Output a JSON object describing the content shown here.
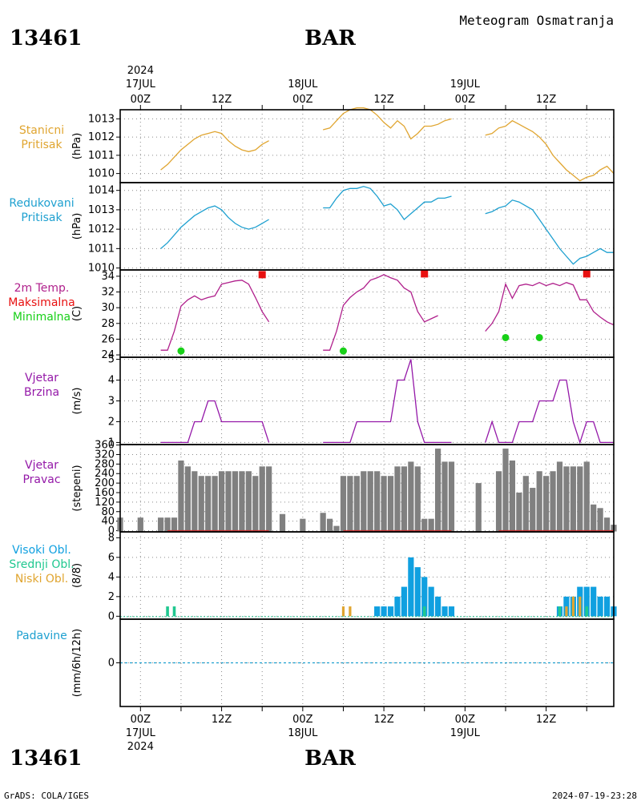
{
  "header": {
    "station_id": "13461",
    "station_name": "BAR",
    "product": "Meteogram Osmatranja"
  },
  "footer": {
    "credit": "GrADS: COLA/IGES",
    "timestamp": "2024-07-19-23:28"
  },
  "top_axis": {
    "year": "2024",
    "days": [
      {
        "label": "17JUL",
        "hour": 0
      },
      {
        "label": "18JUL",
        "hour": 24
      },
      {
        "label": "19JUL",
        "hour": 48
      }
    ],
    "hours": [
      {
        "label": "00Z",
        "hour": 0
      },
      {
        "label": "12Z",
        "hour": 12
      },
      {
        "label": "00Z",
        "hour": 24
      },
      {
        "label": "12Z",
        "hour": 36
      },
      {
        "label": "00Z",
        "hour": 48
      },
      {
        "label": "12Z",
        "hour": 60
      }
    ]
  },
  "bottom_axis": {
    "year": "2024",
    "days": [
      {
        "label": "17JUL",
        "hour": 0
      },
      {
        "label": "18JUL",
        "hour": 24
      },
      {
        "label": "19JUL",
        "hour": 48
      }
    ],
    "hours": [
      {
        "label": "00Z",
        "hour": 0
      },
      {
        "label": "12Z",
        "hour": 12
      },
      {
        "label": "00Z",
        "hour": 24
      },
      {
        "label": "12Z",
        "hour": 36
      },
      {
        "label": "00Z",
        "hour": 48
      },
      {
        "label": "12Z",
        "hour": 60
      }
    ]
  },
  "colors": {
    "station_pressure": "#e0a530",
    "reduced_pressure": "#1ea0d0",
    "temperature": "#b0208c",
    "tmax": "#e81010",
    "tmin": "#18d018",
    "wind": "#9418a8",
    "direction_bar": "#808080",
    "direction_base": "#c83030",
    "cloud_high": "#10a0e0",
    "cloud_mid": "#20c890",
    "cloud_low": "#e0a530",
    "precip": "#1ea0d0"
  },
  "chart_data": [
    {
      "type": "line",
      "id": "station_pressure",
      "labels": [
        "Stanicni",
        "Pritisak"
      ],
      "ylabel": "(hPa)",
      "xlim": [
        -3,
        70
      ],
      "ylim": [
        1009.5,
        1013.5
      ],
      "yticks": [
        1010,
        1011,
        1012,
        1013
      ],
      "series": [
        {
          "x": [
            3,
            4,
            5,
            6,
            7,
            8,
            9,
            10,
            11,
            12,
            13,
            14,
            15,
            16,
            17,
            18,
            19,
            null,
            27,
            28,
            29,
            30,
            31,
            32,
            33,
            34,
            35,
            36,
            37,
            38,
            39,
            40,
            41,
            42,
            43,
            44,
            45,
            46,
            null,
            51,
            52,
            53,
            54,
            55,
            56,
            57,
            58,
            59,
            60,
            61,
            62,
            63,
            64,
            65,
            66,
            67,
            68,
            69,
            70
          ],
          "y": [
            1010.2,
            1010.5,
            1010.9,
            1011.3,
            1011.6,
            1011.9,
            1012.1,
            1012.2,
            1012.3,
            1012.2,
            1011.8,
            1011.5,
            1011.3,
            1011.2,
            1011.3,
            1011.6,
            1011.8,
            null,
            1012.4,
            1012.5,
            1012.9,
            1013.3,
            1013.5,
            1013.6,
            1013.6,
            1013.5,
            1013.2,
            1012.8,
            1012.5,
            1012.9,
            1012.6,
            1011.9,
            1012.2,
            1012.6,
            1012.6,
            1012.7,
            1012.9,
            1013.0,
            null,
            1012.1,
            1012.2,
            1012.5,
            1012.6,
            1012.9,
            1012.7,
            1012.5,
            1012.3,
            1012.0,
            1011.6,
            1011.0,
            1010.6,
            1010.2,
            1009.9,
            1009.6,
            1009.8,
            1009.9,
            1010.2,
            1010.4,
            1010.0
          ]
        }
      ]
    },
    {
      "type": "line",
      "id": "reduced_pressure",
      "labels": [
        "Redukovani",
        "Pritisak"
      ],
      "ylabel": "(hPa)",
      "xlim": [
        -3,
        70
      ],
      "ylim": [
        1009.9,
        1014.4
      ],
      "yticks": [
        1010,
        1011,
        1012,
        1013,
        1014
      ],
      "series": [
        {
          "x": [
            3,
            4,
            5,
            6,
            7,
            8,
            9,
            10,
            11,
            12,
            13,
            14,
            15,
            16,
            17,
            18,
            19,
            null,
            27,
            28,
            29,
            30,
            31,
            32,
            33,
            34,
            35,
            36,
            37,
            38,
            39,
            40,
            41,
            42,
            43,
            44,
            45,
            46,
            null,
            51,
            52,
            53,
            54,
            55,
            56,
            57,
            58,
            59,
            60,
            61,
            62,
            63,
            64,
            65,
            66,
            67,
            68,
            69,
            70
          ],
          "y": [
            1011.0,
            1011.3,
            1011.7,
            1012.1,
            1012.4,
            1012.7,
            1012.9,
            1013.1,
            1013.2,
            1013.0,
            1012.6,
            1012.3,
            1012.1,
            1012.0,
            1012.1,
            1012.3,
            1012.5,
            null,
            1013.1,
            1013.1,
            1013.6,
            1014.0,
            1014.1,
            1014.1,
            1014.2,
            1014.1,
            1013.7,
            1013.2,
            1013.3,
            1013.0,
            1012.5,
            1012.8,
            1013.1,
            1013.4,
            1013.4,
            1013.6,
            1013.6,
            1013.7,
            null,
            1012.8,
            1012.9,
            1013.1,
            1013.2,
            1013.5,
            1013.4,
            1013.2,
            1013.0,
            1012.5,
            1012.0,
            1011.5,
            1011.0,
            1010.6,
            1010.2,
            1010.5,
            1010.6,
            1010.8,
            1011.0,
            1010.8,
            1010.8
          ]
        }
      ]
    },
    {
      "type": "line",
      "id": "temperature",
      "labels": [
        "2m Temp.",
        "Maksimalna",
        "Minimalna"
      ],
      "ylabel": "(C)",
      "xlim": [
        -3,
        70
      ],
      "ylim": [
        23.7,
        34.8
      ],
      "yticks": [
        24,
        26,
        28,
        30,
        32,
        34
      ],
      "series": [
        {
          "name": "2m Temp.",
          "x": [
            3,
            4,
            5,
            6,
            7,
            8,
            9,
            10,
            11,
            12,
            13,
            14,
            15,
            16,
            17,
            18,
            19,
            null,
            27,
            28,
            29,
            30,
            31,
            32,
            33,
            34,
            35,
            36,
            37,
            38,
            39,
            40,
            41,
            42,
            43,
            44,
            null,
            51,
            52,
            53,
            54,
            55,
            56,
            57,
            58,
            59,
            60,
            61,
            62,
            63,
            64,
            65,
            66,
            67,
            68,
            69,
            70
          ],
          "y": [
            24.6,
            24.6,
            27.0,
            30.2,
            31.0,
            31.5,
            31.0,
            31.3,
            31.5,
            33.0,
            33.2,
            33.4,
            33.5,
            33.0,
            31.3,
            29.5,
            28.2,
            null,
            24.6,
            24.6,
            27.0,
            30.3,
            31.3,
            32.0,
            32.5,
            33.5,
            33.8,
            34.2,
            33.8,
            33.5,
            32.5,
            32.0,
            29.5,
            28.2,
            28.6,
            29.0,
            null,
            27.0,
            28.0,
            29.5,
            33.0,
            31.2,
            32.8,
            33.0,
            32.8,
            33.2,
            32.8,
            33.1,
            32.8,
            33.2,
            32.9,
            31.0,
            31.0,
            29.5,
            28.8,
            28.2,
            27.8
          ]
        },
        {
          "name": "Maksimalna",
          "marker": "square",
          "x": [
            18,
            42,
            66
          ],
          "y": [
            34.2,
            34.3,
            34.3
          ]
        },
        {
          "name": "Minimalna",
          "marker": "circle",
          "x": [
            6,
            30,
            54,
            59
          ],
          "y": [
            24.5,
            24.5,
            26.2,
            26.2
          ]
        }
      ]
    },
    {
      "type": "line",
      "id": "wind_speed",
      "labels": [
        "Vjetar",
        "Brzina"
      ],
      "ylabel": "(m/s)",
      "xlim": [
        -3,
        70
      ],
      "ylim": [
        0.9,
        5.1
      ],
      "yticks": [
        1,
        2,
        3,
        4,
        5
      ],
      "series": [
        {
          "x": [
            3,
            4,
            5,
            6,
            7,
            8,
            9,
            10,
            11,
            12,
            13,
            14,
            15,
            16,
            17,
            18,
            19,
            null,
            27,
            28,
            29,
            30,
            31,
            32,
            33,
            34,
            35,
            36,
            37,
            38,
            39,
            40,
            41,
            42,
            43,
            44,
            45,
            46,
            null,
            51,
            52,
            53,
            54,
            55,
            56,
            57,
            58,
            59,
            60,
            61,
            62,
            63,
            64,
            65,
            66,
            67,
            68,
            69,
            70
          ],
          "y": [
            1,
            1,
            1,
            1,
            1,
            2,
            2,
            3,
            3,
            2,
            2,
            2,
            2,
            2,
            2,
            2,
            1,
            null,
            1,
            1,
            1,
            1,
            1,
            2,
            2,
            2,
            2,
            2,
            2,
            4,
            4,
            5,
            2,
            1,
            1,
            1,
            1,
            1,
            null,
            1,
            2,
            1,
            1,
            1,
            2,
            2,
            2,
            3,
            3,
            3,
            4,
            4,
            2,
            1,
            2,
            2,
            1,
            1,
            1
          ]
        }
      ]
    },
    {
      "type": "bar",
      "id": "wind_direction",
      "labels": [
        "Vjetar",
        "Pravac"
      ],
      "ylabel": "(stepeni)",
      "xlim": [
        -3,
        70
      ],
      "ylim": [
        -5,
        362
      ],
      "yticks": [
        0,
        40,
        80,
        120,
        160,
        200,
        240,
        280,
        320,
        360
      ],
      "x": [
        -3,
        0,
        3,
        4,
        5,
        6,
        7,
        8,
        9,
        10,
        11,
        12,
        13,
        14,
        15,
        16,
        17,
        18,
        19,
        21,
        24,
        27,
        28,
        29,
        30,
        31,
        32,
        33,
        34,
        35,
        36,
        37,
        38,
        39,
        40,
        41,
        42,
        43,
        44,
        45,
        46,
        50,
        53,
        54,
        55,
        56,
        57,
        58,
        59,
        60,
        61,
        62,
        63,
        64,
        65,
        66,
        67,
        68,
        69,
        70
      ],
      "values": [
        55,
        55,
        55,
        55,
        55,
        295,
        270,
        250,
        230,
        230,
        230,
        250,
        250,
        250,
        250,
        250,
        230,
        270,
        270,
        70,
        50,
        75,
        50,
        20,
        230,
        230,
        230,
        250,
        250,
        250,
        230,
        230,
        270,
        270,
        290,
        270,
        50,
        50,
        345,
        290,
        290,
        200,
        250,
        345,
        295,
        160,
        230,
        180,
        250,
        230,
        250,
        290,
        270,
        270,
        270,
        290,
        110,
        95,
        55,
        25
      ]
    },
    {
      "type": "bar",
      "id": "cloud_cover",
      "labels": [
        "Visoki Obl.",
        "Srednji Obl.",
        "Niski Obl."
      ],
      "ylabel": "(8/8)",
      "xlim": [
        -3,
        70
      ],
      "ylim": [
        -0.3,
        8.6
      ],
      "yticks": [
        0,
        2,
        4,
        6,
        8
      ],
      "series": [
        {
          "name": "Visoki Obl.",
          "x": [
            35,
            36,
            37,
            38,
            39,
            40,
            41,
            42,
            43,
            44,
            45,
            46,
            62,
            63,
            64,
            65,
            66,
            67,
            68,
            69,
            70
          ],
          "values": [
            1,
            1,
            1,
            2,
            3,
            6,
            5,
            4,
            3,
            2,
            1,
            1,
            1,
            2,
            2,
            3,
            3,
            3,
            2,
            2,
            1
          ]
        },
        {
          "name": "Srednji Obl.",
          "x": [
            4,
            5,
            42,
            62,
            64,
            66
          ],
          "values": [
            1,
            1,
            1,
            1,
            1,
            1
          ]
        },
        {
          "name": "Niski Obl.",
          "x": [
            30,
            31,
            63,
            64,
            65
          ],
          "values": [
            1,
            1,
            1,
            2,
            2
          ]
        }
      ]
    },
    {
      "type": "line",
      "id": "precipitation",
      "labels": [
        "Padavine"
      ],
      "ylabel": "(mm/6h/12h)",
      "xlim": [
        -3,
        70
      ],
      "ylim": [
        -4.8,
        4.8
      ],
      "yticks": [
        0
      ],
      "series": [
        {
          "x": [
            -3,
            70
          ],
          "y": [
            0,
            0
          ]
        }
      ]
    }
  ]
}
